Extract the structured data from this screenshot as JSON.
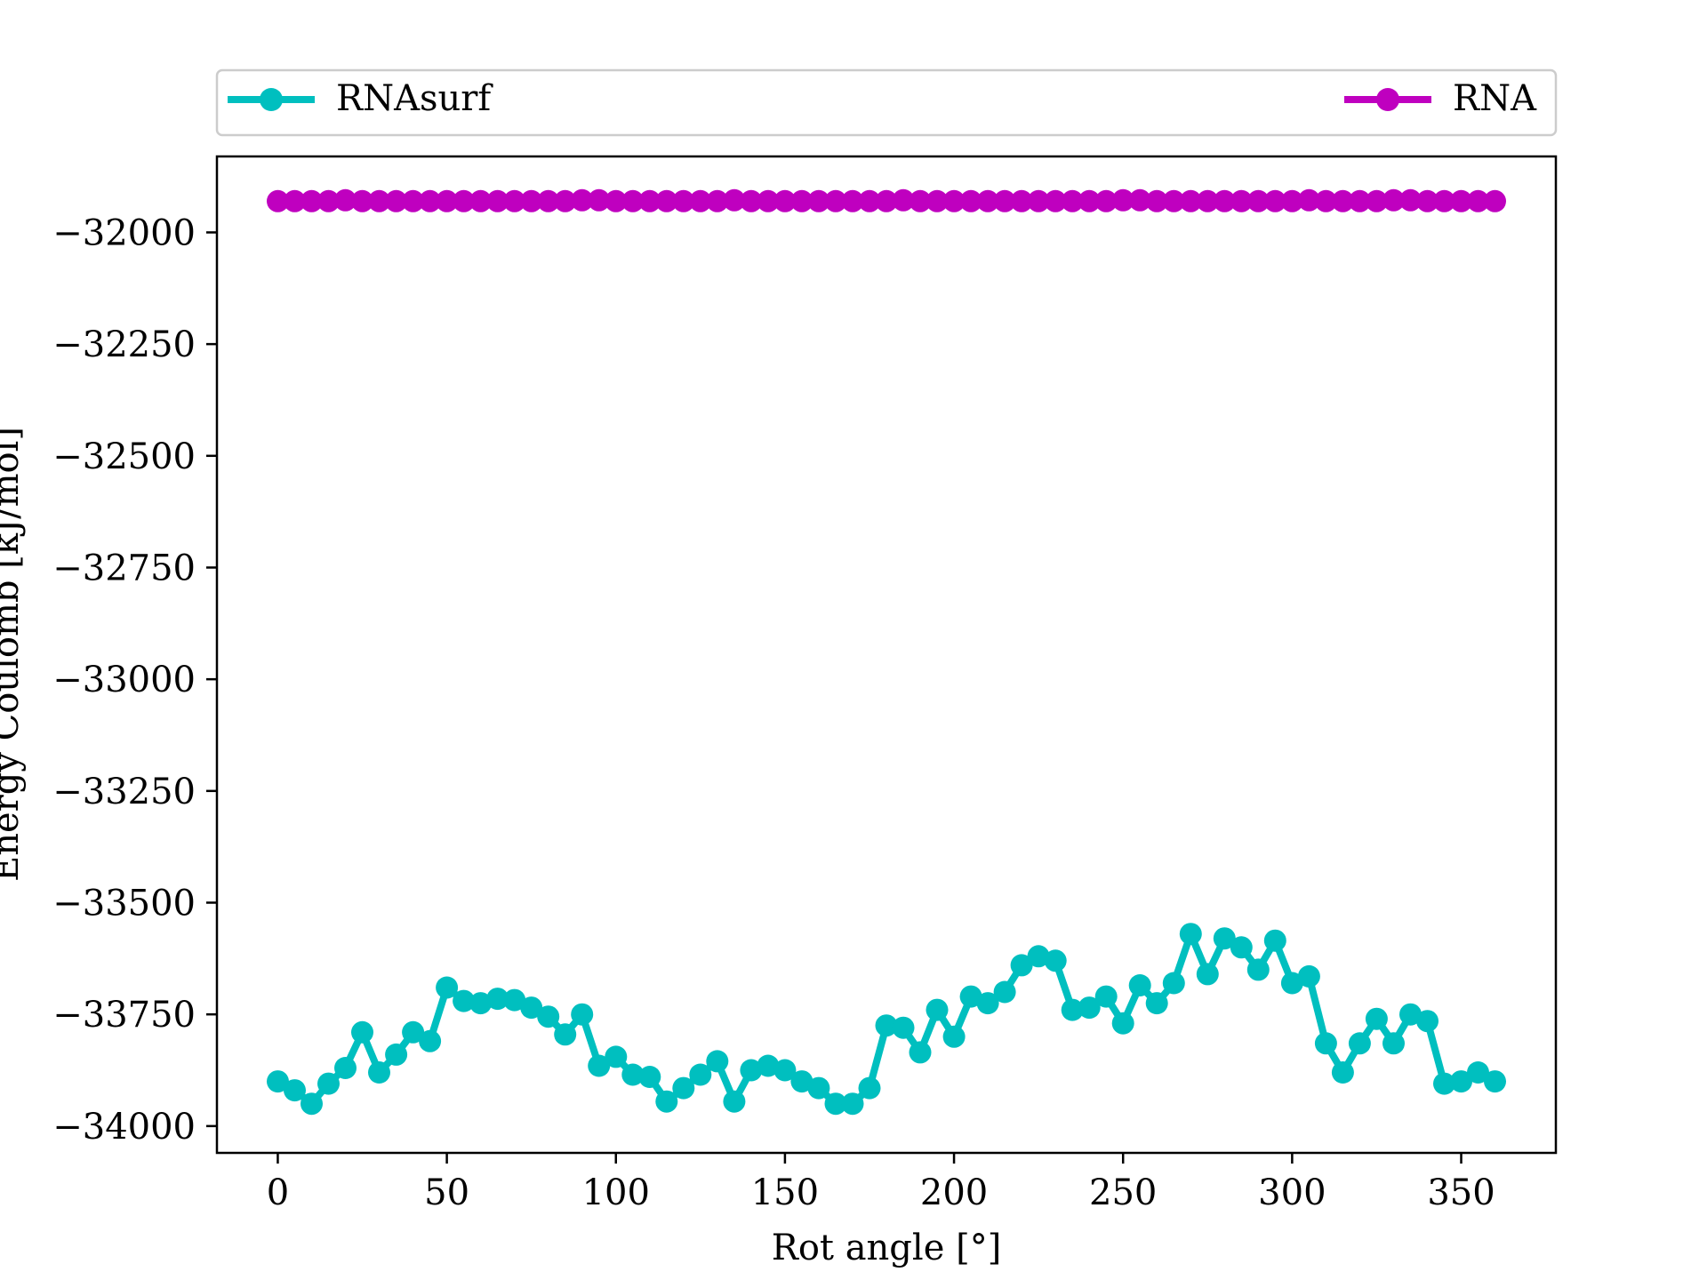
{
  "chart_data": {
    "type": "line",
    "xlabel": "Rot angle [°]",
    "ylabel": "Energy Coulomb [kJ/mol]",
    "xlim": [
      -18,
      378
    ],
    "ylim": [
      -34060,
      -31830
    ],
    "xticks": [
      0,
      50,
      100,
      150,
      200,
      250,
      300,
      350
    ],
    "yticks": [
      -34000,
      -33750,
      -33500,
      -33250,
      -33000,
      -32750,
      -32500,
      -32250,
      -32000
    ],
    "grid": false,
    "legend": {
      "placement": "top, outside plot area",
      "entries": [
        "RNAsurf",
        "RNA"
      ]
    },
    "x": [
      0,
      5,
      10,
      15,
      20,
      25,
      30,
      35,
      40,
      45,
      50,
      55,
      60,
      65,
      70,
      75,
      80,
      85,
      90,
      95,
      100,
      105,
      110,
      115,
      120,
      125,
      130,
      135,
      140,
      145,
      150,
      155,
      160,
      165,
      170,
      175,
      180,
      185,
      190,
      195,
      200,
      205,
      210,
      215,
      220,
      225,
      230,
      235,
      240,
      245,
      250,
      255,
      260,
      265,
      270,
      275,
      280,
      285,
      290,
      295,
      300,
      305,
      310,
      315,
      320,
      325,
      330,
      335,
      340,
      345,
      350,
      355,
      360
    ],
    "series": [
      {
        "name": "RNAsurf",
        "color": "#00bfbf",
        "values": [
          -33900,
          -33920,
          -33950,
          -33905,
          -33870,
          -33790,
          -33880,
          -33840,
          -33790,
          -33810,
          -33690,
          -33720,
          -33725,
          -33715,
          -33718,
          -33735,
          -33755,
          -33795,
          -33750,
          -33865,
          -33845,
          -33885,
          -33890,
          -33945,
          -33915,
          -33885,
          -33855,
          -33945,
          -33875,
          -33865,
          -33875,
          -33900,
          -33915,
          -33950,
          -33950,
          -33915,
          -33775,
          -33780,
          -33835,
          -33740,
          -33800,
          -33710,
          -33725,
          -33700,
          -33640,
          -33620,
          -33630,
          -33740,
          -33735,
          -33710,
          -33770,
          -33685,
          -33725,
          -33680,
          -33570,
          -33660,
          -33580,
          -33600,
          -33650,
          -33585,
          -33680,
          -33665,
          -33815,
          -33880,
          -33815,
          -33760,
          -33815,
          -33750,
          -33765,
          -33905,
          -33900,
          -33880,
          -33900
        ]
      },
      {
        "name": "RNA",
        "color": "#bf00bf",
        "values": [
          -31930,
          -31930,
          -31930,
          -31930,
          -31928,
          -31930,
          -31930,
          -31930,
          -31930,
          -31930,
          -31930,
          -31930,
          -31930,
          -31930,
          -31930,
          -31930,
          -31930,
          -31930,
          -31928,
          -31928,
          -31930,
          -31930,
          -31930,
          -31930,
          -31930,
          -31930,
          -31930,
          -31928,
          -31930,
          -31930,
          -31930,
          -31930,
          -31930,
          -31930,
          -31930,
          -31930,
          -31930,
          -31928,
          -31930,
          -31930,
          -31930,
          -31930,
          -31930,
          -31930,
          -31930,
          -31930,
          -31930,
          -31930,
          -31930,
          -31930,
          -31928,
          -31928,
          -31930,
          -31930,
          -31930,
          -31930,
          -31930,
          -31930,
          -31930,
          -31930,
          -31930,
          -31928,
          -31930,
          -31930,
          -31930,
          -31930,
          -31928,
          -31928,
          -31930,
          -31930,
          -31930,
          -31930,
          -31930
        ]
      }
    ]
  }
}
